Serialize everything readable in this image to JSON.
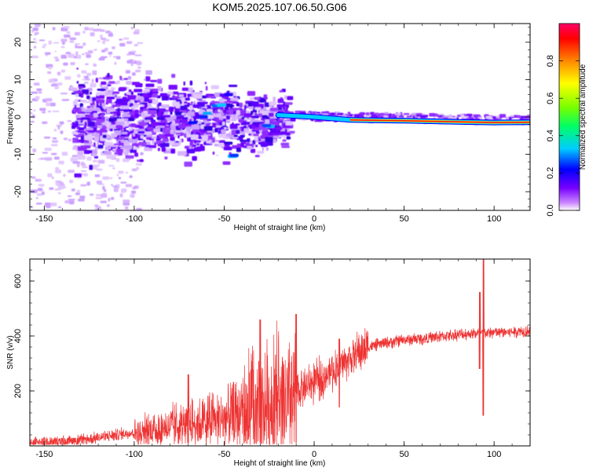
{
  "title": "KOM5.2025.107.06.50.G06",
  "chart_data": [
    {
      "type": "heatmap",
      "xlabel": "Height of straight line (km)",
      "ylabel": "Frequency (Hz)",
      "xlim": [
        -158,
        120
      ],
      "ylim": [
        -25,
        25
      ],
      "xticks": [
        -150,
        -100,
        -50,
        0,
        50,
        100
      ],
      "yticks": [
        -20,
        -10,
        0,
        10,
        20
      ],
      "colorbar": {
        "label": "Normalized spectral amplitude",
        "range": [
          0,
          1
        ],
        "ticks": [
          "0.0",
          "0.2",
          "0.4",
          "0.6",
          "0.8"
        ],
        "colors": [
          "#ffffff",
          "#cc88ff",
          "#7700ff",
          "#0000ff",
          "#00ccff",
          "#00ff66",
          "#77ff00",
          "#ffff00",
          "#ff8800",
          "#ff0000",
          "#ff0066"
        ]
      },
      "signal_line": [
        {
          "x": -20,
          "y": 0.5
        },
        {
          "x": 0,
          "y": 0.0
        },
        {
          "x": 20,
          "y": -0.8
        },
        {
          "x": 50,
          "y": -1.0
        },
        {
          "x": 80,
          "y": -1.3
        },
        {
          "x": 100,
          "y": -1.5
        },
        {
          "x": 120,
          "y": -1.4
        }
      ]
    },
    {
      "type": "line",
      "xlabel": "Height of straight line (km)",
      "ylabel": "SNR (v/v)",
      "xlim": [
        -158,
        120
      ],
      "ylim": [
        0,
        680
      ],
      "xticks": [
        -150,
        -100,
        -50,
        0,
        50,
        100
      ],
      "yticks": [
        200,
        400,
        600
      ],
      "color": "#ee3333",
      "trend": [
        {
          "x": -158,
          "y": 10
        },
        {
          "x": -130,
          "y": 20
        },
        {
          "x": -110,
          "y": 40
        },
        {
          "x": -90,
          "y": 60
        },
        {
          "x": -70,
          "y": 80
        },
        {
          "x": -50,
          "y": 100
        },
        {
          "x": -35,
          "y": 130
        },
        {
          "x": -20,
          "y": 160
        },
        {
          "x": -12,
          "y": 140
        },
        {
          "x": -10,
          "y": 200
        },
        {
          "x": 0,
          "y": 230
        },
        {
          "x": 10,
          "y": 270
        },
        {
          "x": 20,
          "y": 320
        },
        {
          "x": 30,
          "y": 360
        },
        {
          "x": 40,
          "y": 375
        },
        {
          "x": 50,
          "y": 385
        },
        {
          "x": 60,
          "y": 390
        },
        {
          "x": 70,
          "y": 398
        },
        {
          "x": 80,
          "y": 405
        },
        {
          "x": 90,
          "y": 410
        },
        {
          "x": 100,
          "y": 412
        },
        {
          "x": 110,
          "y": 415
        },
        {
          "x": 120,
          "y": 420
        }
      ],
      "spikes": [
        {
          "x": 94,
          "y_low": 110,
          "y_high": 680
        },
        {
          "x": 92,
          "y_low": 280,
          "y_high": 560
        },
        {
          "x": 14,
          "y_low": 140,
          "y_high": 390
        },
        {
          "x": -10,
          "y_low": 10,
          "y_high": 480
        },
        {
          "x": -30,
          "y_low": 10,
          "y_high": 460
        },
        {
          "x": -70,
          "y_low": 10,
          "y_high": 260
        }
      ]
    }
  ]
}
